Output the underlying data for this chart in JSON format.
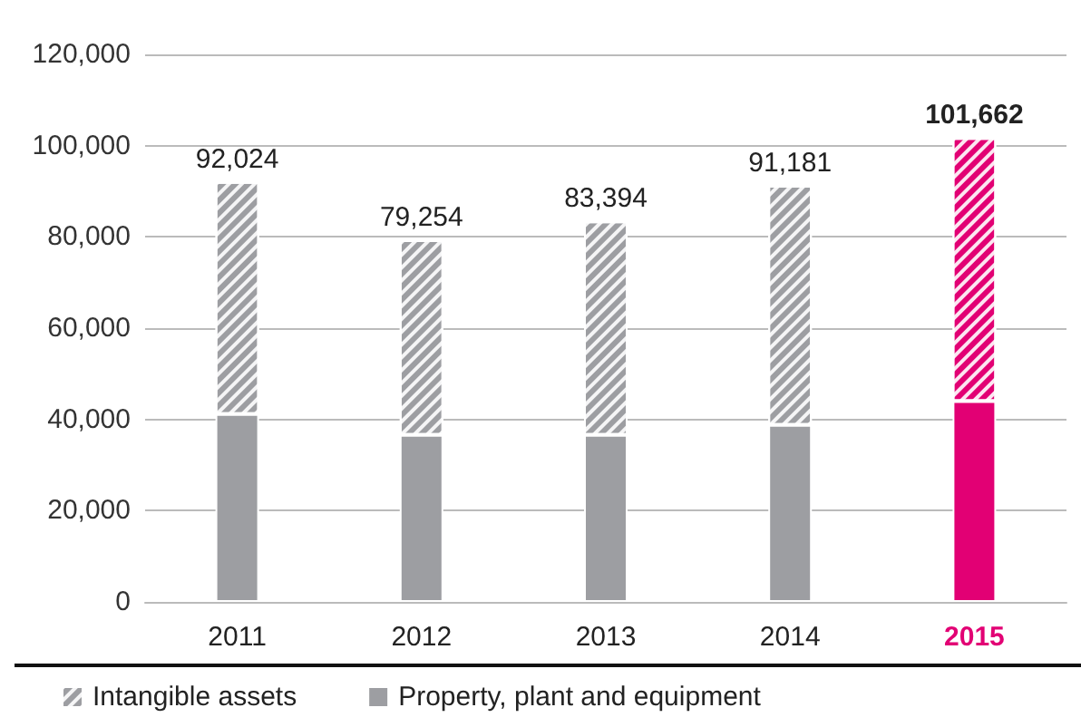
{
  "chart_data": {
    "type": "bar",
    "stacked": true,
    "categories": [
      "2011",
      "2012",
      "2013",
      "2014",
      "2015"
    ],
    "series": [
      {
        "name": "Property, plant and equipment",
        "color": "#9d9ea2",
        "colors": [
          "#9d9ea2",
          "#9d9ea2",
          "#9d9ea2",
          "#9d9ea2",
          "#e20074"
        ],
        "values": [
          41200,
          36600,
          36600,
          38800,
          44000
        ]
      },
      {
        "name": "Intangible assets",
        "color": "#9d9ea2",
        "colors": [
          "#9d9ea2",
          "#9d9ea2",
          "#9d9ea2",
          "#9d9ea2",
          "#e20074"
        ],
        "values": [
          50824,
          42654,
          46794,
          52381,
          57662
        ]
      }
    ],
    "totals": [
      "92,024",
      "79,254",
      "83,394",
      "91,181",
      "101,662"
    ],
    "ylim": [
      0,
      120000
    ],
    "yticks": [
      {
        "value": 0,
        "label": "0"
      },
      {
        "value": 20000,
        "label": "20,000"
      },
      {
        "value": 40000,
        "label": "40,000"
      },
      {
        "value": 60000,
        "label": "60,000"
      },
      {
        "value": 80000,
        "label": "80,000"
      },
      {
        "value": 100000,
        "label": "100,000"
      },
      {
        "value": 120000,
        "label": "120,000"
      }
    ],
    "grid": "y",
    "legend": "bottom left"
  }
}
